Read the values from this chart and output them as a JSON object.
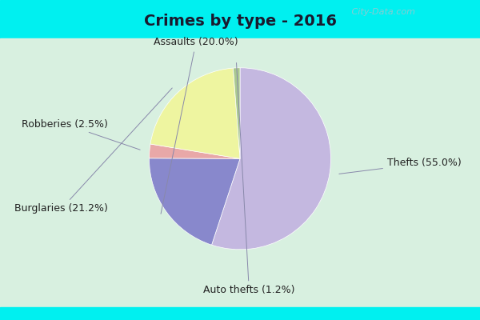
{
  "title": "Crimes by type - 2016",
  "slices": [
    {
      "label": "Thefts (55.0%)",
      "value": 55.0,
      "color": "#c4b8e0"
    },
    {
      "label": "Assaults (20.0%)",
      "value": 20.0,
      "color": "#8888cc"
    },
    {
      "label": "Robberies (2.5%)",
      "value": 2.5,
      "color": "#e8a8a8"
    },
    {
      "label": "Burglaries (21.2%)",
      "value": 21.2,
      "color": "#eef5a0"
    },
    {
      "label": "Auto thefts (1.2%)",
      "value": 1.2,
      "color": "#aac890"
    }
  ],
  "bg_top_color": "#00f0f0",
  "bg_body_color": "#d8f0e0",
  "title_fontsize": 14,
  "label_fontsize": 9,
  "startangle": 90,
  "watermark": " City-Data.com"
}
